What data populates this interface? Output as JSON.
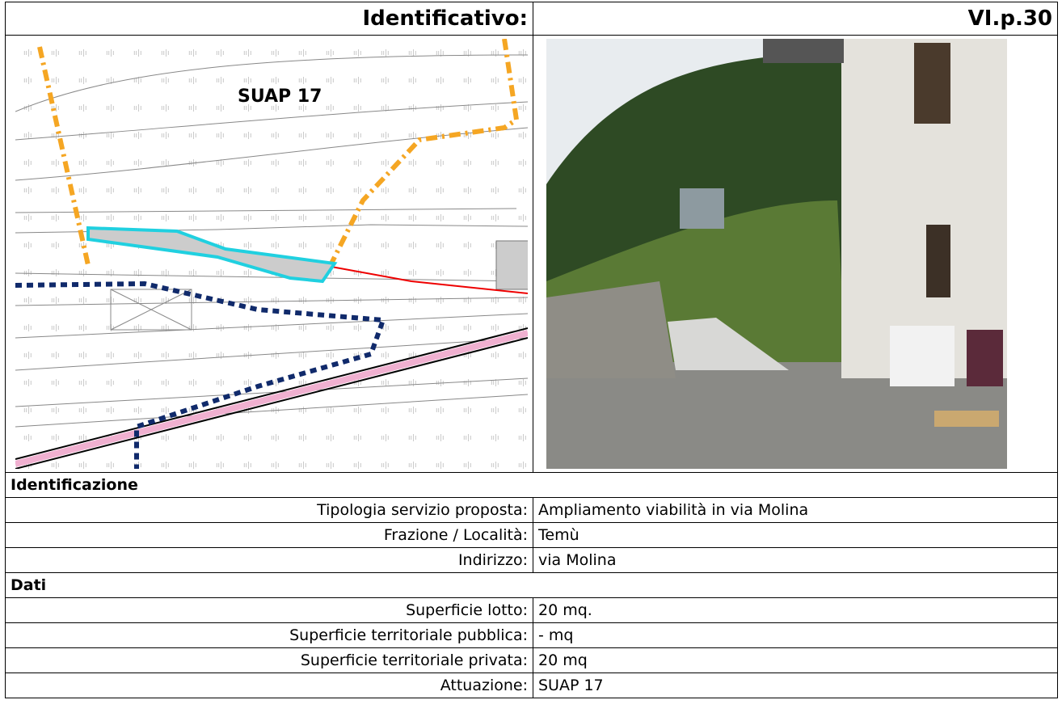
{
  "header": {
    "label": "Identificativo:",
    "value": "VI.p.30"
  },
  "map": {
    "label": "SUAP 17"
  },
  "sections": [
    {
      "title": "Identificazione",
      "rows": [
        [
          "Tipologia servizio proposta:",
          "Ampliamento viabilità in via Molina"
        ],
        [
          "Frazione / Località:",
          "Temù"
        ],
        [
          "Indirizzo:",
          "via Molina"
        ]
      ]
    },
    {
      "title": "Dati",
      "rows": [
        [
          "Superficie lotto:",
          "20 mq."
        ],
        [
          "Superficie territoriale pubblica:",
          "- mq"
        ],
        [
          "Superficie territoriale privata:",
          "20 mq"
        ],
        [
          "Attuazione:",
          "SUAP 17"
        ]
      ]
    }
  ]
}
